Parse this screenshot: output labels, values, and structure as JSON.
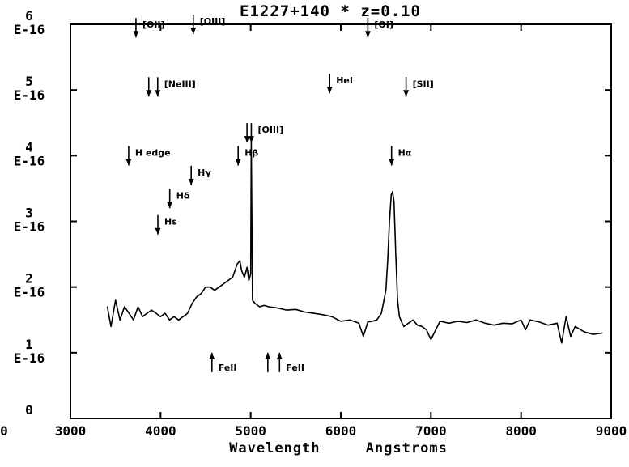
{
  "chart_data": {
    "type": "line",
    "title": "E1227+140  *  z=0.10",
    "xlabel": "Wavelength     Angstroms",
    "ylabel": "",
    "xlim": [
      3000,
      9000
    ],
    "ylim": [
      0,
      6
    ],
    "x_ticks": [
      3000,
      4000,
      5000,
      6000,
      7000,
      8000,
      9000
    ],
    "x_tick_labels": [
      "3000",
      "4000",
      "5000",
      "6000",
      "7000",
      "8000",
      "9000"
    ],
    "x_tick_label_far_left": "0",
    "y_ticks": [
      {
        "value": 0,
        "num": "0",
        "exp": ""
      },
      {
        "value": 1,
        "num": "1",
        "exp": "E-16"
      },
      {
        "value": 2,
        "num": "2",
        "exp": "E-16"
      },
      {
        "value": 3,
        "num": "3",
        "exp": "E-16"
      },
      {
        "value": 4,
        "num": "4",
        "exp": "E-16"
      },
      {
        "value": 5,
        "num": "5",
        "exp": "E-16"
      },
      {
        "value": 6,
        "num": "6",
        "exp": "E-16"
      }
    ],
    "grid": false,
    "series": [
      {
        "name": "",
        "x": [
          3410,
          3450,
          3500,
          3550,
          3600,
          3650,
          3700,
          3750,
          3800,
          3850,
          3900,
          3950,
          4000,
          4050,
          4100,
          4150,
          4200,
          4250,
          4300,
          4350,
          4400,
          4450,
          4500,
          4550,
          4600,
          4650,
          4700,
          4750,
          4800,
          4850,
          4880,
          4900,
          4930,
          4960,
          4980,
          5000,
          5007,
          5020,
          5050,
          5100,
          5150,
          5200,
          5300,
          5400,
          5500,
          5600,
          5700,
          5800,
          5900,
          6000,
          6100,
          6200,
          6250,
          6300,
          6350,
          6400,
          6450,
          6500,
          6520,
          6540,
          6560,
          6575,
          6590,
          6610,
          6630,
          6650,
          6680,
          6700,
          6750,
          6800,
          6850,
          6900,
          6950,
          7000,
          7100,
          7200,
          7300,
          7400,
          7500,
          7600,
          7700,
          7800,
          7900,
          8000,
          8050,
          8100,
          8200,
          8300,
          8400,
          8450,
          8500,
          8550,
          8600,
          8700,
          8800,
          8900
        ],
        "y": [
          1.7,
          1.4,
          1.8,
          1.5,
          1.7,
          1.6,
          1.5,
          1.7,
          1.55,
          1.6,
          1.65,
          1.6,
          1.55,
          1.6,
          1.5,
          1.55,
          1.5,
          1.55,
          1.6,
          1.75,
          1.85,
          1.9,
          2.0,
          2.0,
          1.95,
          2.0,
          2.05,
          2.1,
          2.15,
          2.35,
          2.4,
          2.25,
          2.15,
          2.3,
          2.1,
          2.2,
          4.2,
          1.8,
          1.75,
          1.7,
          1.72,
          1.7,
          1.68,
          1.65,
          1.66,
          1.62,
          1.6,
          1.58,
          1.55,
          1.48,
          1.5,
          1.45,
          1.25,
          1.47,
          1.48,
          1.5,
          1.6,
          1.95,
          2.4,
          3.0,
          3.4,
          3.45,
          3.3,
          2.5,
          1.8,
          1.55,
          1.45,
          1.4,
          1.45,
          1.5,
          1.42,
          1.4,
          1.35,
          1.2,
          1.48,
          1.45,
          1.48,
          1.46,
          1.5,
          1.45,
          1.42,
          1.45,
          1.44,
          1.5,
          1.35,
          1.5,
          1.47,
          1.42,
          1.45,
          1.15,
          1.55,
          1.25,
          1.4,
          1.32,
          1.28,
          1.3
        ]
      }
    ],
    "annotations": [
      {
        "id": "oii",
        "label": "[OII]",
        "x": 3727,
        "dir": "down",
        "tip": 5.8
      },
      {
        "id": "oiii-4363",
        "label": "[OIII]",
        "x": 4363,
        "dir": "down",
        "tip": 5.85
      },
      {
        "id": "oi",
        "label": "[OI]",
        "x": 6300,
        "dir": "down",
        "tip": 5.8
      },
      {
        "id": "neiii-a",
        "label": "",
        "x": 3869,
        "dir": "down",
        "tip": 4.9
      },
      {
        "id": "neiii-b",
        "label": "[NeIII]",
        "x": 3968,
        "dir": "down",
        "tip": 4.9
      },
      {
        "id": "hei",
        "label": "HeI",
        "x": 5876,
        "dir": "down",
        "tip": 4.95
      },
      {
        "id": "sii",
        "label": "[SII]",
        "x": 6724,
        "dir": "down",
        "tip": 4.9
      },
      {
        "id": "h-edge",
        "label": "H edge",
        "x": 3646,
        "dir": "down",
        "tip": 3.85
      },
      {
        "id": "oiii-4959",
        "label": "",
        "x": 4959,
        "dir": "down",
        "tip": 4.2
      },
      {
        "id": "oiii-5007",
        "label": "[OIII]",
        "x": 5007,
        "dir": "down",
        "tip": 4.2
      },
      {
        "id": "h-beta",
        "label": "Hβ",
        "x": 4861,
        "dir": "down",
        "tip": 3.85
      },
      {
        "id": "h-alpha",
        "label": "Hα",
        "x": 6563,
        "dir": "down",
        "tip": 3.85
      },
      {
        "id": "h-gamma",
        "label": "Hγ",
        "x": 4340,
        "dir": "down",
        "tip": 3.55
      },
      {
        "id": "h-delta",
        "label": "Hδ",
        "x": 4102,
        "dir": "down",
        "tip": 3.2
      },
      {
        "id": "h-epsilon",
        "label": "Hε",
        "x": 3970,
        "dir": "down",
        "tip": 2.8
      },
      {
        "id": "feii-a",
        "label": "FeII",
        "x": 4570,
        "dir": "up",
        "tip": 1.0
      },
      {
        "id": "feii-b",
        "label": "",
        "x": 5190,
        "dir": "up",
        "tip": 1.0
      },
      {
        "id": "feii-c",
        "label": "FeII",
        "x": 5320,
        "dir": "up",
        "tip": 1.0
      }
    ]
  }
}
